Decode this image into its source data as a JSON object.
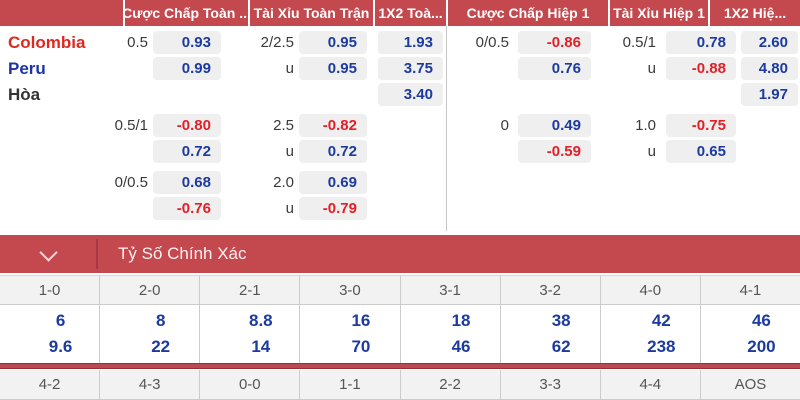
{
  "colors": {
    "header_red": "#c3494f",
    "header_dark_red": "#a43a40",
    "odds_blue": "#1c3aa0",
    "odds_negative_red": "#e31f26",
    "team_home_red": "#e02820",
    "team_away_blue": "#1c34a8",
    "draw_text": "#333333",
    "pill_background": "#efefef",
    "grid_border": "#cccccc",
    "score_header_background": "#f2f2f2",
    "score_header_text": "#555555"
  },
  "odds_table": {
    "column_headers": {
      "ah_ft": "Cược Chấp Toàn ...",
      "ou_ft": "Tài Xỉu Toàn Trận",
      "x12_ft": "1X2 Toà...",
      "ah_h1": "Cược Chấp Hiệp 1",
      "ou_h1": "Tài Xỉu Hiệp 1",
      "x12_h1": "1X2 Hiệ..."
    },
    "rows": [
      {
        "team": "Colombia",
        "ah_ft": {
          "hcap": "0.5",
          "odds": "0.93"
        },
        "ou_ft": {
          "hcap": "2/2.5",
          "odds": "0.95"
        },
        "x12_ft": {
          "odds": "1.93"
        },
        "ah_h1": {
          "hcap": "0/0.5",
          "odds": "-0.86"
        },
        "ou_h1": {
          "hcap": "0.5/1",
          "odds": "0.78"
        },
        "x12_h1": {
          "odds": "2.60"
        }
      },
      {
        "team": "Peru",
        "ah_ft": {
          "odds": "0.99"
        },
        "ou_ft": {
          "hcap": "u",
          "odds": "0.95"
        },
        "x12_ft": {
          "odds": "3.75"
        },
        "ah_h1": {
          "odds": "0.76"
        },
        "ou_h1": {
          "hcap": "u",
          "odds": "-0.88"
        },
        "x12_h1": {
          "odds": "4.80"
        }
      },
      {
        "team": "Hòa",
        "x12_ft": {
          "odds": "3.40"
        },
        "x12_h1": {
          "odds": "1.97"
        }
      },
      {
        "ah_ft": {
          "hcap": "0.5/1",
          "odds": "-0.80"
        },
        "ou_ft": {
          "hcap": "2.5",
          "odds": "-0.82"
        },
        "ah_h1": {
          "hcap": "0",
          "odds": "0.49"
        },
        "ou_h1": {
          "hcap": "1.0",
          "odds": "-0.75"
        }
      },
      {
        "ah_ft": {
          "odds": "0.72"
        },
        "ou_ft": {
          "hcap": "u",
          "odds": "0.72"
        },
        "ah_h1": {
          "odds": "-0.59"
        },
        "ou_h1": {
          "hcap": "u",
          "odds": "0.65"
        }
      },
      {
        "ah_ft": {
          "hcap": "0/0.5",
          "odds": "0.68"
        },
        "ou_ft": {
          "hcap": "2.0",
          "odds": "0.69"
        }
      },
      {
        "ah_ft": {
          "odds": "-0.76"
        },
        "ou_ft": {
          "hcap": "u",
          "odds": "-0.79"
        }
      }
    ]
  },
  "score_section": {
    "title": "Tỷ Số Chính Xác",
    "row1_scores": [
      "1-0",
      "2-0",
      "2-1",
      "3-0",
      "3-1",
      "3-2",
      "4-0",
      "4-1"
    ],
    "row1_odds_top": [
      "6",
      "8",
      "8.8",
      "16",
      "18",
      "38",
      "42",
      "46"
    ],
    "row1_odds_bottom": [
      "9.6",
      "22",
      "14",
      "70",
      "46",
      "62",
      "238",
      "200"
    ],
    "row2_scores": [
      "4-2",
      "4-3",
      "0-0",
      "1-1",
      "2-2",
      "3-3",
      "4-4",
      "AOS"
    ]
  }
}
